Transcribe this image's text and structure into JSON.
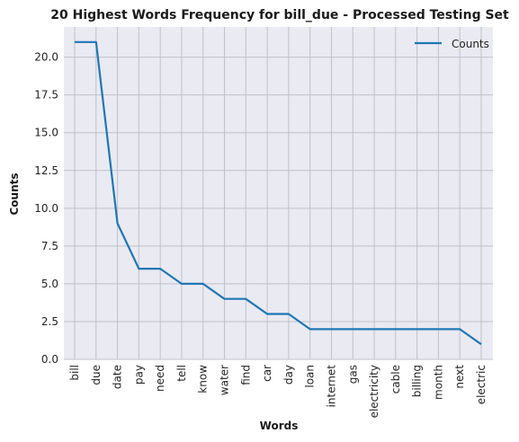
{
  "chart_data": {
    "type": "line",
    "title": "20 Highest Words Frequency for bill_due - Processed Testing Set",
    "xlabel": "Words",
    "ylabel": "Counts",
    "categories": [
      "bill",
      "due",
      "date",
      "pay",
      "need",
      "tell",
      "know",
      "water",
      "find",
      "car",
      "day",
      "loan",
      "internet",
      "gas",
      "electricity",
      "cable",
      "billing",
      "month",
      "next",
      "electric"
    ],
    "series": [
      {
        "name": "Counts",
        "values": [
          21,
          21,
          9,
          6,
          6,
          5,
          5,
          4,
          4,
          3,
          3,
          2,
          2,
          2,
          2,
          2,
          2,
          2,
          2,
          1
        ],
        "color": "#1f77b4"
      }
    ],
    "yticks": [
      "0.0",
      "2.5",
      "5.0",
      "7.5",
      "10.0",
      "12.5",
      "15.0",
      "17.5",
      "20.0"
    ],
    "ylim": [
      0,
      22
    ],
    "grid": true,
    "legend_position": "top-right",
    "plot_background": "#eaeaf2",
    "grid_color": "#c0c0c8"
  }
}
